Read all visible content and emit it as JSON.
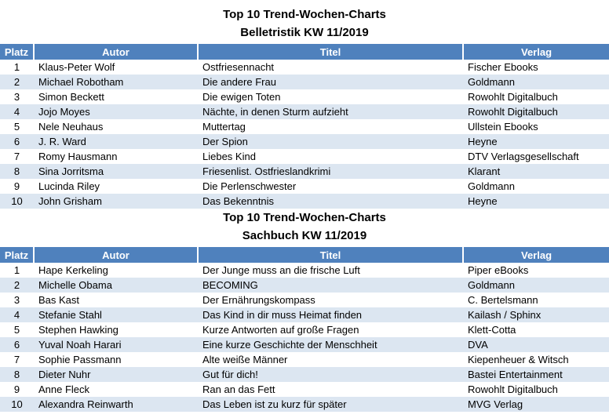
{
  "colors": {
    "header_bg": "#4F81BD",
    "header_text": "#FFFFFF",
    "band_bg": "#DCE6F1",
    "body_text": "#000000"
  },
  "tables": [
    {
      "title_line1": "Top 10 Trend-Wochen-Charts",
      "title_line2": "Belletristik KW 11/2019",
      "columns": {
        "rank": "Platz",
        "author": "Autor",
        "title": "Titel",
        "publisher": "Verlag"
      },
      "rows": [
        {
          "rank": "1",
          "author": "Klaus-Peter Wolf",
          "title": "Ostfriesennacht",
          "publisher": "Fischer Ebooks"
        },
        {
          "rank": "2",
          "author": "Michael Robotham",
          "title": "Die andere Frau",
          "publisher": "Goldmann"
        },
        {
          "rank": "3",
          "author": "Simon Beckett",
          "title": "Die ewigen Toten",
          "publisher": "Rowohlt Digitalbuch"
        },
        {
          "rank": "4",
          "author": "Jojo Moyes",
          "title": "Nächte, in denen Sturm aufzieht",
          "publisher": "Rowohlt Digitalbuch"
        },
        {
          "rank": "5",
          "author": "Nele Neuhaus",
          "title": "Muttertag",
          "publisher": "Ullstein Ebooks"
        },
        {
          "rank": "6",
          "author": "J. R. Ward",
          "title": "Der Spion",
          "publisher": "Heyne"
        },
        {
          "rank": "7",
          "author": "Romy Hausmann",
          "title": "Liebes Kind",
          "publisher": "DTV Verlagsgesellschaft"
        },
        {
          "rank": "8",
          "author": "Sina Jorritsma",
          "title": "Friesenlist. Ostfrieslandkrimi",
          "publisher": "Klarant"
        },
        {
          "rank": "9",
          "author": "Lucinda Riley",
          "title": "Die Perlenschwester",
          "publisher": "Goldmann"
        },
        {
          "rank": "10",
          "author": "John Grisham",
          "title": "Das Bekenntnis",
          "publisher": "Heyne"
        }
      ]
    },
    {
      "title_line1": "Top 10 Trend-Wochen-Charts",
      "title_line2": "Sachbuch KW 11/2019",
      "columns": {
        "rank": "Platz",
        "author": "Autor",
        "title": "Titel",
        "publisher": "Verlag"
      },
      "rows": [
        {
          "rank": "1",
          "author": "Hape Kerkeling",
          "title": "Der Junge muss an die frische Luft",
          "publisher": "Piper eBooks"
        },
        {
          "rank": "2",
          "author": "Michelle Obama",
          "title": "BECOMING",
          "publisher": "Goldmann"
        },
        {
          "rank": "3",
          "author": "Bas Kast",
          "title": "Der Ernährungskompass",
          "publisher": "C. Bertelsmann"
        },
        {
          "rank": "4",
          "author": "Stefanie Stahl",
          "title": "Das Kind in dir muss Heimat finden",
          "publisher": "Kailash / Sphinx"
        },
        {
          "rank": "5",
          "author": "Stephen Hawking",
          "title": "Kurze Antworten auf große Fragen",
          "publisher": "Klett-Cotta"
        },
        {
          "rank": "6",
          "author": "Yuval Noah Harari",
          "title": "Eine kurze Geschichte der Menschheit",
          "publisher": "DVA"
        },
        {
          "rank": "7",
          "author": "Sophie Passmann",
          "title": "Alte weiße Männer",
          "publisher": "Kiepenheuer & Witsch"
        },
        {
          "rank": "8",
          "author": "Dieter Nuhr",
          "title": "Gut für dich!",
          "publisher": "Bastei Entertainment"
        },
        {
          "rank": "9",
          "author": "Anne Fleck",
          "title": "Ran an das Fett",
          "publisher": "Rowohlt Digitalbuch"
        },
        {
          "rank": "10",
          "author": "Alexandra Reinwarth",
          "title": "Das Leben ist zu kurz für später",
          "publisher": "MVG Verlag"
        }
      ]
    }
  ]
}
